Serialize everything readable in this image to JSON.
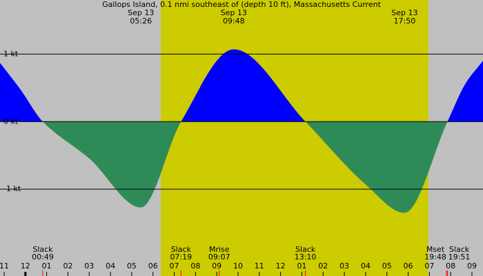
{
  "chart_data": {
    "type": "current",
    "title": "Gallops Island, 0.1 nmi southeast of (depth 10 ft), Massachusetts Current",
    "background_color": "#c0c0c0",
    "daylight_color": "#cccc00",
    "daylight": [
      6.37,
      18.95
    ],
    "xlim": [
      -1.195,
      21.52
    ],
    "ylim": [
      -2.04,
      1.8
    ],
    "yticks": [
      {
        "value": 1,
        "label": "1 kt"
      },
      {
        "value": 0,
        "label": "0 kt"
      },
      {
        "value": -1,
        "label": "-1 kt"
      }
    ],
    "xticks": [
      {
        "value": -1,
        "label": "11"
      },
      {
        "value": 0,
        "label": "12"
      },
      {
        "value": 1,
        "label": "01"
      },
      {
        "value": 2,
        "label": "02"
      },
      {
        "value": 3,
        "label": "03"
      },
      {
        "value": 4,
        "label": "04"
      },
      {
        "value": 5,
        "label": "05"
      },
      {
        "value": 6,
        "label": "06"
      },
      {
        "value": 7,
        "label": "07"
      },
      {
        "value": 8,
        "label": "08"
      },
      {
        "value": 9,
        "label": "09"
      },
      {
        "value": 10,
        "label": "10"
      },
      {
        "value": 11,
        "label": "11"
      },
      {
        "value": 12,
        "label": "12"
      },
      {
        "value": 13,
        "label": "01"
      },
      {
        "value": 14,
        "label": "02"
      },
      {
        "value": 15,
        "label": "03"
      },
      {
        "value": 16,
        "label": "04"
      },
      {
        "value": 17,
        "label": "05"
      },
      {
        "value": 18,
        "label": "06"
      },
      {
        "value": 19,
        "label": "07"
      },
      {
        "value": 20,
        "label": "08"
      },
      {
        "value": 21,
        "label": "09"
      }
    ],
    "series": [
      {
        "flood_color": "#0000ff",
        "ebb_color": "#2e8b57",
        "x": [
          -1.195,
          -0.22,
          0.817,
          3.02,
          5.43,
          7.32,
          9.8,
          13.17,
          16.0,
          17.83,
          19.85,
          20.71,
          21.52
        ],
        "values": [
          0.87,
          0.47,
          0,
          -0.55,
          -1.27,
          0,
          1.07,
          0,
          -0.93,
          -1.35,
          0,
          0.57,
          0.9
        ]
      }
    ],
    "peaks": [
      {
        "date": "Sep 13",
        "time": "05:26"
      },
      {
        "date": "Sep 13",
        "time": "09:48"
      },
      {
        "date": "Sep 13",
        "time": "17:50"
      }
    ],
    "events": [
      {
        "label": "Slack",
        "time": "00:49"
      },
      {
        "label": "Slack",
        "time": "07:19"
      },
      {
        "label": "Mrise",
        "time": "09:07"
      },
      {
        "label": "Slack",
        "time": "13:10"
      },
      {
        "label": "Mset",
        "time": "19:48"
      },
      {
        "label": "Slack",
        "time": "19:51"
      }
    ]
  }
}
